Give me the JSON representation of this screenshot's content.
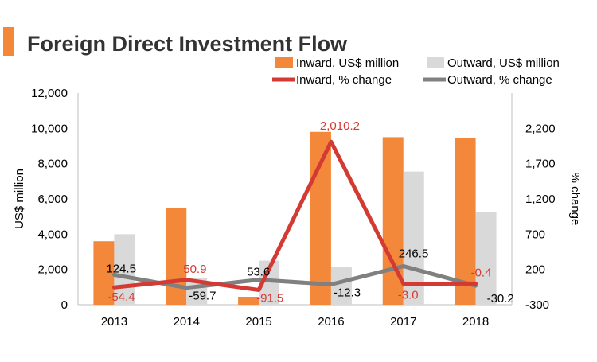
{
  "chart_data": {
    "type": "bar",
    "title": "Foreign Direct Investment Flow",
    "categories": [
      "2013",
      "2014",
      "2015",
      "2016",
      "2017",
      "2018"
    ],
    "ylabel": "US$ million",
    "y2label": "% change",
    "ylim": [
      0,
      12000
    ],
    "y2lim": [
      -300,
      2700
    ],
    "yticks": [
      "0",
      "2,000",
      "4,000",
      "6,000",
      "8,000",
      "10,000",
      "12,000"
    ],
    "yticks_values": [
      0,
      2000,
      4000,
      6000,
      8000,
      10000,
      12000
    ],
    "y2ticks": [
      "-300",
      "200",
      "700",
      "1,200",
      "1,700",
      "2,200"
    ],
    "y2ticks_values": [
      -300,
      200,
      700,
      1200,
      1700,
      2200
    ],
    "legend_position": "top-right",
    "series": [
      {
        "name": "Inward, US$ million",
        "kind": "bar",
        "axis": "left",
        "color": "#F4883A",
        "values": [
          3600,
          5500,
          450,
          9800,
          9500,
          9450
        ]
      },
      {
        "name": "Outward, US$ million",
        "kind": "bar",
        "axis": "left",
        "color": "#D9D9D9",
        "values": [
          4000,
          1500,
          2500,
          2150,
          7550,
          5250
        ]
      },
      {
        "name": "Inward, % change",
        "kind": "line",
        "axis": "right",
        "color": "#D43A34",
        "values": [
          -54.4,
          50.9,
          -91.5,
          2010.2,
          -3.0,
          -0.4
        ],
        "labels": [
          "-54.4",
          "50.9",
          "-91.5",
          "2,010.2",
          "-3.0",
          "-0.4"
        ]
      },
      {
        "name": "Outward, % change",
        "kind": "line",
        "axis": "right",
        "color": "#808080",
        "values": [
          124.5,
          -59.7,
          53.6,
          -12.3,
          246.5,
          -30.2
        ],
        "labels": [
          "124.5",
          "-59.7",
          "53.6",
          "-12.3",
          "246.5",
          "-30.2"
        ]
      }
    ]
  }
}
